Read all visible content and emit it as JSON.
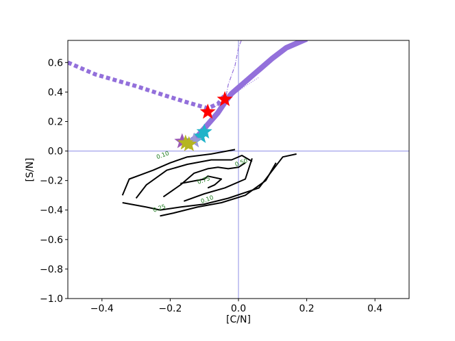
{
  "chart_data": {
    "type": "line",
    "xlabel": "[C/N]",
    "ylabel": "[S/N]",
    "xlim": [
      -0.5,
      0.5
    ],
    "ylim": [
      -1.0,
      0.75
    ],
    "xticks": [
      -0.4,
      -0.2,
      0.0,
      0.2,
      0.4
    ],
    "xtick_labels": [
      "−0.4",
      "−0.2",
      "0.0",
      "0.2",
      "0.4"
    ],
    "yticks": [
      -1.0,
      -0.8,
      -0.6,
      -0.4,
      -0.2,
      0.0,
      0.2,
      0.4,
      0.6
    ],
    "ytick_labels": [
      "−1.0",
      "−0.8",
      "−0.6",
      "−0.4",
      "−0.2",
      "0.0",
      "0.2",
      "0.4",
      "0.6"
    ],
    "grid": false,
    "reference_lines": {
      "x": 0.0,
      "y": 0.0,
      "color": "#8c8ce6"
    },
    "series": [
      {
        "style": "dotted-thick",
        "color": "#9370db",
        "points": [
          [
            -0.5,
            0.6
          ],
          [
            -0.42,
            0.52
          ],
          [
            -0.3,
            0.44
          ],
          [
            -0.22,
            0.38
          ],
          [
            -0.15,
            0.33
          ],
          [
            -0.09,
            0.29
          ],
          [
            -0.06,
            0.32
          ],
          [
            -0.04,
            0.38
          ]
        ]
      },
      {
        "style": "solid-thick",
        "color": "#9370db",
        "points": [
          [
            -0.15,
            0.05
          ],
          [
            -0.12,
            0.1
          ],
          [
            -0.09,
            0.18
          ],
          [
            -0.06,
            0.26
          ],
          [
            -0.04,
            0.33
          ],
          [
            -0.02,
            0.39
          ],
          [
            0.01,
            0.45
          ],
          [
            0.05,
            0.53
          ],
          [
            0.1,
            0.63
          ],
          [
            0.14,
            0.7
          ],
          [
            0.2,
            0.76
          ]
        ]
      },
      {
        "style": "dashdot-thin",
        "color": "#9370db",
        "points": [
          [
            -0.04,
            0.33
          ],
          [
            -0.03,
            0.45
          ],
          [
            -0.01,
            0.58
          ],
          [
            0.0,
            0.7
          ],
          [
            0.01,
            0.76
          ]
        ]
      },
      {
        "style": "dotted-thin",
        "color": "#9370db",
        "points": [
          [
            -0.1,
            0.26
          ],
          [
            -0.07,
            0.3
          ],
          [
            -0.03,
            0.36
          ],
          [
            0.02,
            0.44
          ],
          [
            0.06,
            0.5
          ]
        ]
      }
    ],
    "markers": [
      {
        "shape": "star",
        "color": "#ff0000",
        "x": -0.04,
        "y": 0.35
      },
      {
        "shape": "star",
        "color": "#ff0000",
        "x": -0.09,
        "y": 0.265
      },
      {
        "shape": "star",
        "color": "#1fb3c9",
        "x": -0.1,
        "y": 0.13
      },
      {
        "shape": "star",
        "color": "#1fb3c9",
        "x": -0.11,
        "y": 0.1
      },
      {
        "shape": "star",
        "color": "#9a9ad8",
        "x": -0.13,
        "y": 0.07
      },
      {
        "shape": "star",
        "color": "#9b59b6",
        "x": -0.165,
        "y": 0.065
      },
      {
        "shape": "star",
        "color": "#b5b520",
        "x": -0.155,
        "y": 0.055
      },
      {
        "shape": "star",
        "color": "#b5b520",
        "x": -0.145,
        "y": 0.045
      }
    ],
    "contours": [
      {
        "level_label": "0.10",
        "color": "#000000",
        "segments": [
          [
            [
              -0.34,
              -0.3
            ],
            [
              -0.32,
              -0.19
            ],
            [
              -0.25,
              -0.13
            ],
            [
              -0.2,
              -0.08
            ],
            [
              -0.15,
              -0.04
            ],
            [
              -0.08,
              -0.02
            ],
            [
              -0.01,
              0.01
            ]
          ],
          [
            [
              -0.34,
              -0.35
            ],
            [
              -0.27,
              -0.38
            ],
            [
              -0.23,
              -0.4
            ],
            [
              -0.17,
              -0.38
            ],
            [
              -0.1,
              -0.36
            ],
            [
              -0.03,
              -0.32
            ],
            [
              0.06,
              -0.25
            ],
            [
              0.13,
              -0.04
            ],
            [
              0.17,
              -0.02
            ]
          ]
        ],
        "labels": [
          [
            -0.22,
            -0.04,
            0.0
          ],
          [
            -0.09,
            -0.34,
            0.0
          ]
        ]
      },
      {
        "level_label": "0.25",
        "color": "#000000",
        "segments": [
          [
            [
              -0.3,
              -0.32
            ],
            [
              -0.27,
              -0.23
            ],
            [
              -0.21,
              -0.13
            ],
            [
              -0.15,
              -0.09
            ],
            [
              -0.08,
              -0.06
            ],
            [
              -0.02,
              -0.06
            ],
            [
              0.01,
              -0.03
            ],
            [
              0.04,
              -0.07
            ]
          ],
          [
            [
              -0.23,
              -0.44
            ],
            [
              -0.19,
              -0.42
            ],
            [
              -0.12,
              -0.38
            ],
            [
              -0.05,
              -0.35
            ],
            [
              0.02,
              -0.3
            ],
            [
              0.08,
              -0.2
            ],
            [
              0.11,
              -0.08
            ]
          ]
        ],
        "labels": [
          [
            -0.23,
            -0.4,
            0.0
          ]
        ]
      },
      {
        "level_label": "0.50",
        "color": "#000000",
        "segments": [
          [
            [
              -0.22,
              -0.31
            ],
            [
              -0.17,
              -0.23
            ],
            [
              -0.13,
              -0.15
            ],
            [
              -0.09,
              -0.12
            ],
            [
              -0.06,
              -0.11
            ],
            [
              -0.03,
              -0.12
            ],
            [
              0.0,
              -0.11
            ],
            [
              0.02,
              -0.08
            ]
          ],
          [
            [
              -0.16,
              -0.34
            ],
            [
              -0.1,
              -0.29
            ],
            [
              -0.04,
              -0.25
            ],
            [
              0.02,
              -0.19
            ],
            [
              0.04,
              -0.05
            ]
          ]
        ],
        "labels": [
          [
            0.01,
            -0.09,
            0.0
          ]
        ]
      },
      {
        "level_label": "0.75",
        "color": "#000000",
        "segments": [
          [
            [
              -0.17,
              -0.22
            ],
            [
              -0.1,
              -0.19
            ],
            [
              -0.09,
              -0.17
            ],
            [
              -0.07,
              -0.18
            ],
            [
              -0.05,
              -0.19
            ],
            [
              -0.07,
              -0.23
            ],
            [
              -0.09,
              -0.25
            ]
          ]
        ],
        "labels": [
          [
            -0.1,
            -0.21,
            0.0
          ]
        ]
      }
    ]
  }
}
